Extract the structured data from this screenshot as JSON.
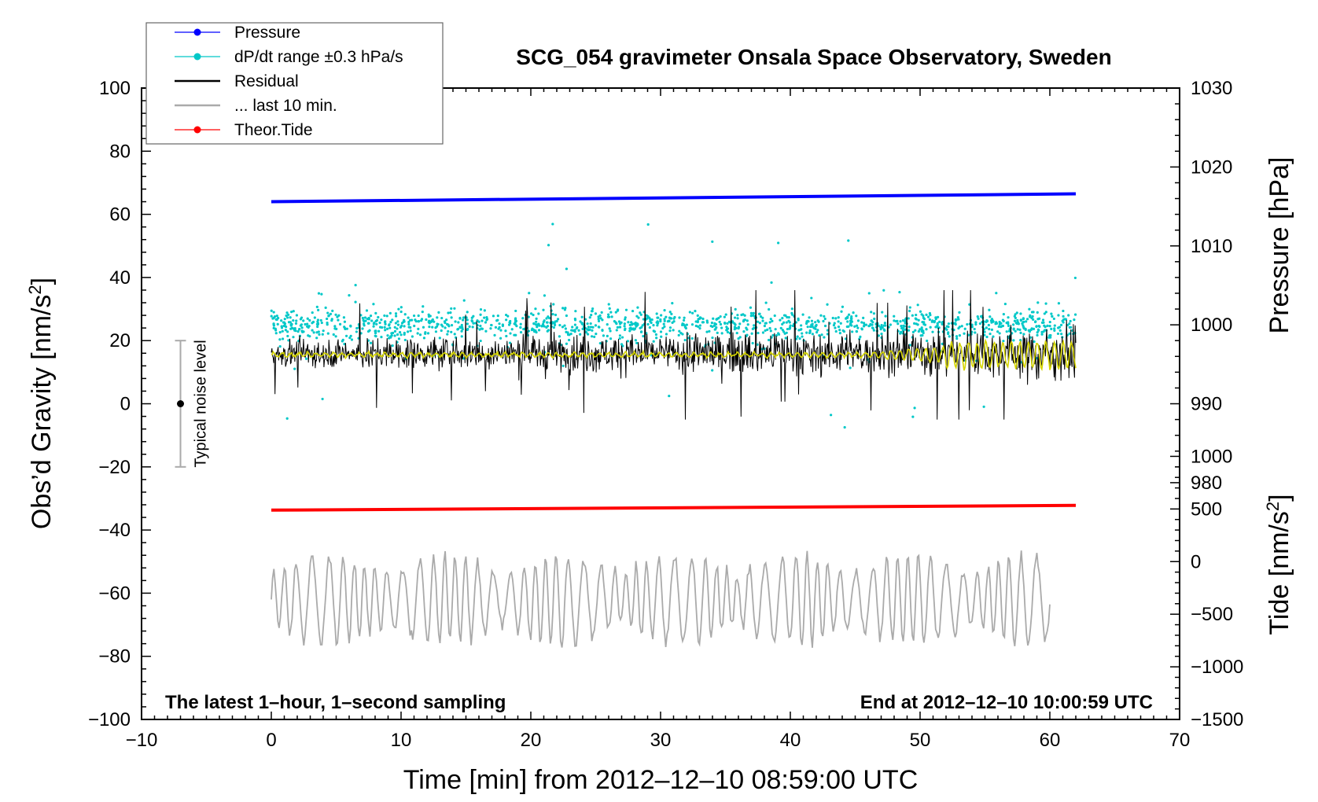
{
  "chart_data": {
    "type": "line",
    "title": "SCG_054 gravimeter Onsala Space Observatory, Sweden",
    "xlabel": "Time [min] from 2012–12–10 08:59:00 UTC",
    "ylabel_left": "Obs’d Gravity [nm/s",
    "ylabel_left_sup": "2",
    "ylabel_left_tail": "]",
    "ylabel_right_pressure": "Pressure [hPa]",
    "ylabel_right_tide": "Tide [nm/s",
    "ylabel_right_tide_sup": "2",
    "ylabel_right_tide_tail": "]",
    "xlim": [
      -10,
      70
    ],
    "ylim": [
      -100,
      100
    ],
    "pressure_lim": [
      950,
      1030
    ],
    "tide_lim": [
      -1500,
      4500
    ],
    "x_ticks": [
      "−10",
      "0",
      "10",
      "20",
      "30",
      "40",
      "50",
      "60",
      "70"
    ],
    "x_tick_values": [
      -10,
      0,
      10,
      20,
      30,
      40,
      50,
      60,
      70
    ],
    "y_ticks": [
      "100",
      "80",
      "60",
      "40",
      "20",
      "0",
      "−20",
      "−40",
      "−60",
      "−80",
      "−100"
    ],
    "y_tick_values": [
      100,
      80,
      60,
      40,
      20,
      0,
      -20,
      -40,
      -60,
      -80,
      -100
    ],
    "pressure_ticks": [
      "1030",
      "1020",
      "1010",
      "1000",
      "990",
      "980"
    ],
    "pressure_tick_values": [
      1030,
      1020,
      1010,
      1000,
      990,
      980
    ],
    "tide_ticks": [
      "1000",
      "500",
      "0",
      "−500",
      "−1000",
      "−1500"
    ],
    "tide_tick_values": [
      1000,
      500,
      0,
      -500,
      -1000,
      -1500
    ],
    "legend": [
      {
        "label": "Pressure",
        "color": "#0000ff",
        "style": "line-dot"
      },
      {
        "label": "dP/dt range ±0.3 hPa/s",
        "color": "#00c8c8",
        "style": "line-dot"
      },
      {
        "label": "Residual",
        "color": "#000000",
        "style": "line"
      },
      {
        "label": "... last 10 min.",
        "color": "#aaaaaa",
        "style": "line"
      },
      {
        "label": "Theor.Tide",
        "color": "#ff0000",
        "style": "line-dot"
      }
    ],
    "series": [
      {
        "name": "Pressure",
        "axis": "pressure",
        "color": "#0000ff",
        "x_range": [
          0,
          62
        ],
        "start": 1015.6,
        "end": 1016.6
      },
      {
        "name": "dP/dt range ±0.3 hPa/s",
        "axis": "pressure",
        "color": "#00c8c8",
        "x_range": [
          0,
          62
        ],
        "center": 1000,
        "spread": 8
      },
      {
        "name": "Residual",
        "axis": "gravity",
        "color": "#000000",
        "x_range": [
          0,
          62
        ],
        "center": 16,
        "amplitude_range": [
          -5,
          36
        ]
      },
      {
        "name": "Residual smoothed",
        "axis": "gravity",
        "color": "#d4d400",
        "x_range": [
          0,
          62
        ],
        "center": 15.5
      },
      {
        "name": "Theor.Tide",
        "axis": "gravity",
        "color": "#ff0000",
        "x_range": [
          0,
          62
        ],
        "start": -33.7,
        "end": -32.2
      },
      {
        "name": "... last 10 min.",
        "axis": "gravity",
        "color": "#aaaaaa",
        "x_range": [
          0,
          60
        ],
        "center": -62,
        "amplitude_range": [
          -82,
          -42
        ]
      }
    ],
    "noise_bar": {
      "x": -7,
      "center": 0,
      "low": -20,
      "high": 20,
      "label": "Typical noise level"
    },
    "annotation_left": "The latest 1–hour, 1–second sampling",
    "annotation_right": "End at 2012–12–10 10:00:59 UTC"
  }
}
